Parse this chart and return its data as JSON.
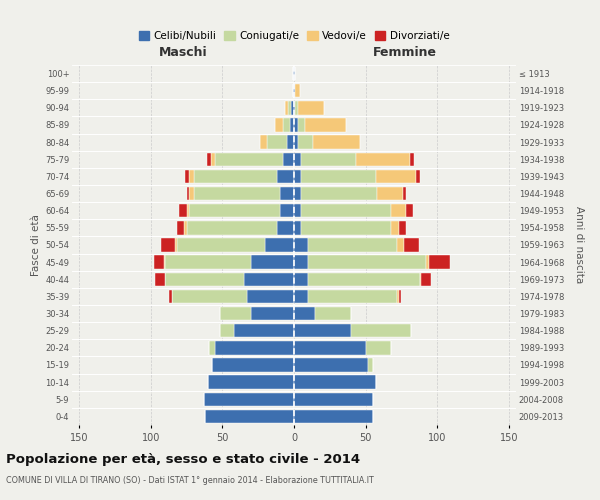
{
  "age_groups": [
    "0-4",
    "5-9",
    "10-14",
    "15-19",
    "20-24",
    "25-29",
    "30-34",
    "35-39",
    "40-44",
    "45-49",
    "50-54",
    "55-59",
    "60-64",
    "65-69",
    "70-74",
    "75-79",
    "80-84",
    "85-89",
    "90-94",
    "95-99",
    "100+"
  ],
  "birth_years": [
    "2009-2013",
    "2004-2008",
    "1999-2003",
    "1994-1998",
    "1989-1993",
    "1984-1988",
    "1979-1983",
    "1974-1978",
    "1969-1973",
    "1964-1968",
    "1959-1963",
    "1954-1958",
    "1949-1953",
    "1944-1948",
    "1939-1943",
    "1934-1938",
    "1929-1933",
    "1924-1928",
    "1919-1923",
    "1914-1918",
    "≤ 1913"
  ],
  "maschi": {
    "celibi": [
      62,
      63,
      60,
      57,
      55,
      42,
      30,
      33,
      35,
      30,
      20,
      12,
      10,
      10,
      12,
      8,
      5,
      3,
      2,
      1,
      1
    ],
    "coniugati": [
      0,
      0,
      0,
      0,
      4,
      10,
      22,
      52,
      55,
      60,
      62,
      63,
      63,
      60,
      58,
      47,
      14,
      5,
      2,
      0,
      0
    ],
    "vedovi": [
      0,
      0,
      0,
      0,
      0,
      0,
      0,
      0,
      0,
      1,
      1,
      2,
      2,
      3,
      3,
      3,
      5,
      5,
      2,
      0,
      0
    ],
    "divorziati": [
      0,
      0,
      0,
      0,
      0,
      0,
      0,
      2,
      7,
      7,
      10,
      5,
      5,
      2,
      3,
      3,
      0,
      0,
      0,
      0,
      0
    ]
  },
  "femmine": {
    "nubili": [
      55,
      55,
      57,
      52,
      50,
      40,
      15,
      10,
      10,
      10,
      10,
      5,
      5,
      5,
      5,
      5,
      3,
      3,
      1,
      1,
      1
    ],
    "coniugate": [
      0,
      0,
      0,
      3,
      18,
      42,
      25,
      62,
      78,
      82,
      62,
      63,
      63,
      53,
      52,
      38,
      10,
      5,
      2,
      0,
      0
    ],
    "vedove": [
      0,
      0,
      0,
      0,
      0,
      0,
      0,
      1,
      1,
      2,
      5,
      5,
      10,
      18,
      28,
      38,
      33,
      28,
      18,
      3,
      0
    ],
    "divorziate": [
      0,
      0,
      0,
      0,
      0,
      0,
      0,
      2,
      7,
      15,
      10,
      5,
      5,
      2,
      3,
      3,
      0,
      0,
      0,
      0,
      0
    ]
  },
  "colors": {
    "celibi": "#3d6faf",
    "coniugati": "#c5d9a0",
    "vedovi": "#f5c878",
    "divorziati": "#cc2222"
  },
  "xlim": 155,
  "title": "Popolazione per età, sesso e stato civile - 2014",
  "subtitle": "COMUNE DI VILLA DI TIRANO (SO) - Dati ISTAT 1° gennaio 2014 - Elaborazione TUTTITALIA.IT",
  "ylabel_left": "Fasce di età",
  "ylabel_right": "Anni di nascita",
  "xlabel_left": "Maschi",
  "xlabel_right": "Femmine",
  "bg_color": "#f0f0eb",
  "grid_color": "#cccccc"
}
